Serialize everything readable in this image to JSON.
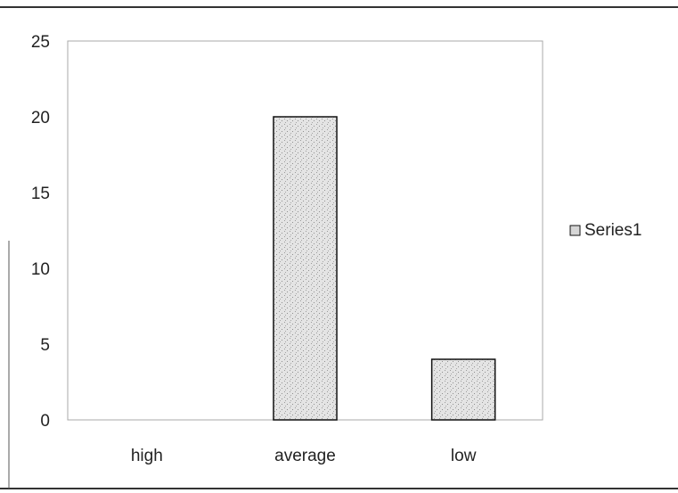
{
  "chart_data": {
    "type": "bar",
    "categories": [
      "high",
      "average",
      "low"
    ],
    "series": [
      {
        "name": "Series1",
        "values": [
          0,
          20,
          4
        ]
      }
    ],
    "ylim": [
      0,
      25
    ],
    "yticks": [
      "0",
      "5",
      "10",
      "15",
      "20",
      "25"
    ],
    "grid": false,
    "legend": "right",
    "colors": {
      "bar_fill": "#d6d6d6",
      "bar_stroke": "#111111",
      "plot_border": "#a8a8a8",
      "frame": "#333333"
    }
  }
}
